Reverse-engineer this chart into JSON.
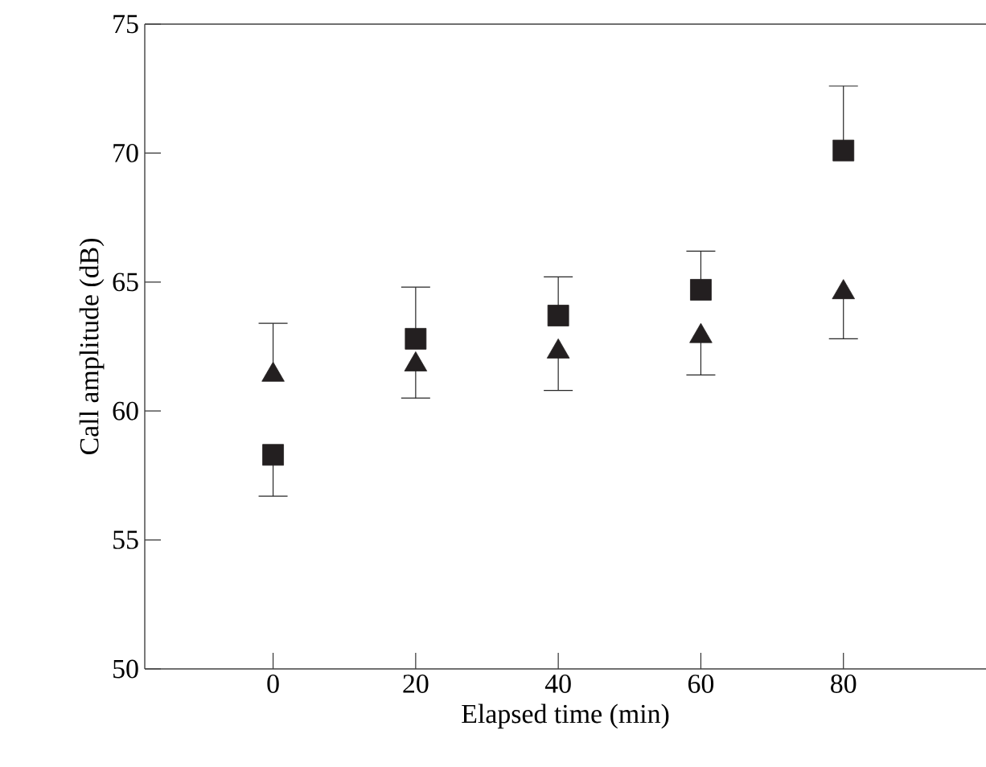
{
  "chart_data": {
    "type": "scatter",
    "xlabel": "Elapsed time (min)",
    "ylabel": "Call amplitude (dB)",
    "x": [
      0,
      20,
      40,
      60,
      80
    ],
    "xlim": [
      -18,
      100
    ],
    "ylim": [
      50,
      75
    ],
    "xticks": [
      0,
      20,
      40,
      60,
      80
    ],
    "yticks": [
      50,
      55,
      60,
      65,
      70,
      75
    ],
    "series": [
      {
        "color": "#231f20",
        "marker": "square",
        "values": [
          58.3,
          62.8,
          63.7,
          64.7,
          70.1
        ],
        "errors": [
          [
            56.7,
            58.3
          ],
          [
            62.8,
            64.8
          ],
          [
            63.7,
            65.2
          ],
          [
            64.7,
            66.2
          ],
          [
            70.1,
            72.6
          ]
        ]
      },
      {
        "color": "#231f20",
        "marker": "triangle",
        "values": [
          61.4,
          61.8,
          62.3,
          62.9,
          64.6
        ],
        "errors": [
          [
            61.4,
            63.4
          ],
          [
            60.5,
            61.8
          ],
          [
            60.8,
            62.3
          ],
          [
            61.4,
            62.9
          ],
          [
            62.8,
            64.6
          ]
        ]
      }
    ]
  }
}
